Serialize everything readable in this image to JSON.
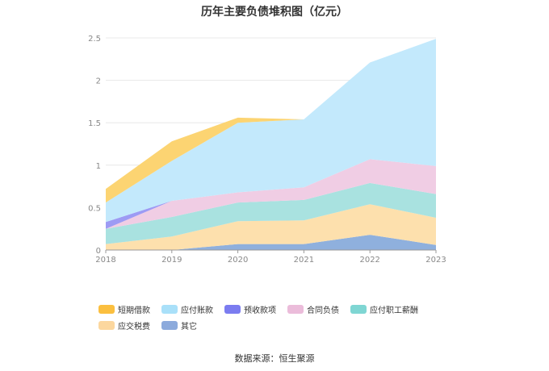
{
  "chart_data": {
    "type": "area",
    "title": "历年主要负债堆积图（亿元）",
    "xlabel": "",
    "ylabel": "",
    "categories": [
      "2018",
      "2019",
      "2020",
      "2021",
      "2022",
      "2023"
    ],
    "y_ticks": [
      "0",
      "0.5",
      "1",
      "1.5",
      "2",
      "2.5"
    ],
    "ylim": [
      0,
      2.5
    ],
    "stacked": true,
    "grid": true,
    "legend_position": "bottom",
    "series": [
      {
        "name": "其它",
        "color": "#8fb0dd",
        "values": [
          0.0,
          0.0,
          0.07,
          0.07,
          0.18,
          0.06
        ]
      },
      {
        "name": "应交税费",
        "color": "#fde0ad",
        "values": [
          0.07,
          0.16,
          0.27,
          0.28,
          0.36,
          0.32
        ]
      },
      {
        "name": "应付职工薪酬",
        "color": "#a9e2e0",
        "values": [
          0.18,
          0.23,
          0.22,
          0.24,
          0.25,
          0.28
        ]
      },
      {
        "name": "合同负债",
        "color": "#f0cde4",
        "values": [
          0.0,
          0.19,
          0.12,
          0.15,
          0.28,
          0.33
        ]
      },
      {
        "name": "预收款项",
        "color": "#9d9bf4",
        "values": [
          0.08,
          0.0,
          0.0,
          0.0,
          0.0,
          0.0
        ]
      },
      {
        "name": "应付账款",
        "color": "#c3e9fc",
        "values": [
          0.23,
          0.47,
          0.82,
          0.8,
          1.14,
          1.5
        ]
      },
      {
        "name": "短期借款",
        "color": "#fcd472",
        "values": [
          0.16,
          0.23,
          0.06,
          0.0,
          0.0,
          0.0
        ]
      }
    ]
  },
  "legend": [
    {
      "label": "短期借款",
      "color": "#fbbf3f"
    },
    {
      "label": "应付账款",
      "color": "#a9e0f9"
    },
    {
      "label": "预收款项",
      "color": "#7b7cf0"
    },
    {
      "label": "合同负债",
      "color": "#ebbcda"
    },
    {
      "label": "应付职工薪酬",
      "color": "#7fd6d3"
    },
    {
      "label": "应交税费",
      "color": "#fcd79e"
    },
    {
      "label": "其它",
      "color": "#8caadc"
    }
  ],
  "source_note": "数据来源：恒生聚源"
}
